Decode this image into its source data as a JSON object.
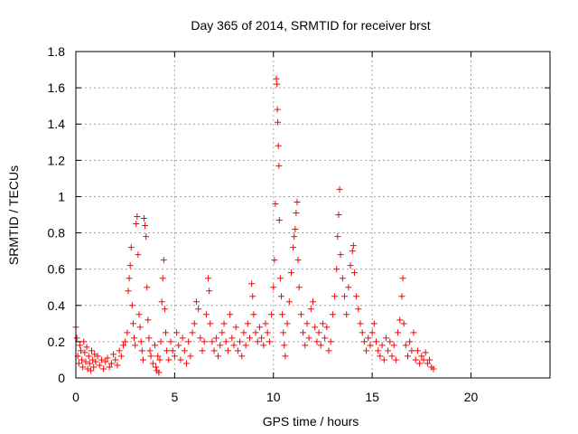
{
  "chart_data": {
    "type": "scatter",
    "title": "Day 365 of 2014, SRMTID for receiver brst",
    "xlabel": "GPS time / hours",
    "ylabel": "SRMTID / TECUs",
    "xlim": [
      0,
      24
    ],
    "ylim": [
      0,
      1.8
    ],
    "xticks": [
      0,
      5,
      10,
      15,
      20
    ],
    "yticks": [
      0,
      0.2,
      0.4,
      0.6,
      0.8,
      1,
      1.2,
      1.4,
      1.6,
      1.8
    ],
    "xtick_labels": [
      "0",
      "5",
      "10",
      "15",
      "20"
    ],
    "ytick_labels": [
      "0",
      "0.2",
      "0.4",
      "0.6",
      "0.8",
      "1",
      "1.2",
      "1.4",
      "1.6",
      "1.8"
    ],
    "grid": true,
    "marker": "+",
    "color": "#ff0000",
    "series": [
      {
        "name": "SRMTID",
        "points": [
          [
            0.0,
            0.28
          ],
          [
            0.05,
            0.22
          ],
          [
            0.1,
            0.12
          ],
          [
            0.15,
            0.08
          ],
          [
            0.2,
            0.18
          ],
          [
            0.25,
            0.15
          ],
          [
            0.3,
            0.1
          ],
          [
            0.35,
            0.06
          ],
          [
            0.4,
            0.2
          ],
          [
            0.45,
            0.14
          ],
          [
            0.5,
            0.09
          ],
          [
            0.55,
            0.17
          ],
          [
            0.6,
            0.05
          ],
          [
            0.65,
            0.12
          ],
          [
            0.7,
            0.08
          ],
          [
            0.75,
            0.04
          ],
          [
            0.8,
            0.15
          ],
          [
            0.85,
            0.1
          ],
          [
            0.9,
            0.06
          ],
          [
            0.95,
            0.13
          ],
          [
            1.0,
            0.09
          ],
          [
            1.1,
            0.12
          ],
          [
            1.2,
            0.07
          ],
          [
            1.3,
            0.1
          ],
          [
            1.4,
            0.05
          ],
          [
            1.5,
            0.09
          ],
          [
            1.6,
            0.11
          ],
          [
            1.7,
            0.06
          ],
          [
            1.8,
            0.08
          ],
          [
            1.9,
            0.13
          ],
          [
            2.0,
            0.1
          ],
          [
            2.1,
            0.07
          ],
          [
            2.2,
            0.15
          ],
          [
            2.3,
            0.12
          ],
          [
            2.4,
            0.18
          ],
          [
            2.5,
            0.2
          ],
          [
            2.6,
            0.25
          ],
          [
            2.65,
            0.48
          ],
          [
            2.7,
            0.55
          ],
          [
            2.75,
            0.62
          ],
          [
            2.8,
            0.72
          ],
          [
            2.85,
            0.4
          ],
          [
            2.9,
            0.3
          ],
          [
            2.95,
            0.22
          ],
          [
            3.0,
            0.18
          ],
          [
            3.05,
            0.85
          ],
          [
            3.1,
            0.89
          ],
          [
            3.15,
            0.68
          ],
          [
            3.2,
            0.35
          ],
          [
            3.25,
            0.28
          ],
          [
            3.3,
            0.2
          ],
          [
            3.35,
            0.15
          ],
          [
            3.4,
            0.1
          ],
          [
            3.45,
            0.88
          ],
          [
            3.5,
            0.84
          ],
          [
            3.55,
            0.78
          ],
          [
            3.6,
            0.5
          ],
          [
            3.65,
            0.32
          ],
          [
            3.7,
            0.22
          ],
          [
            3.75,
            0.15
          ],
          [
            3.8,
            0.12
          ],
          [
            3.9,
            0.08
          ],
          [
            4.0,
            0.18
          ],
          [
            4.05,
            0.06
          ],
          [
            4.1,
            0.04
          ],
          [
            4.15,
            0.12
          ],
          [
            4.2,
            0.03
          ],
          [
            4.25,
            0.1
          ],
          [
            4.3,
            0.2
          ],
          [
            4.35,
            0.42
          ],
          [
            4.4,
            0.55
          ],
          [
            4.45,
            0.65
          ],
          [
            4.5,
            0.38
          ],
          [
            4.55,
            0.25
          ],
          [
            4.6,
            0.15
          ],
          [
            4.7,
            0.1
          ],
          [
            4.8,
            0.2
          ],
          [
            4.9,
            0.15
          ],
          [
            5.0,
            0.12
          ],
          [
            5.1,
            0.25
          ],
          [
            5.2,
            0.18
          ],
          [
            5.3,
            0.1
          ],
          [
            5.4,
            0.22
          ],
          [
            5.5,
            0.15
          ],
          [
            5.6,
            0.08
          ],
          [
            5.7,
            0.2
          ],
          [
            5.8,
            0.12
          ],
          [
            5.9,
            0.25
          ],
          [
            6.0,
            0.3
          ],
          [
            6.1,
            0.42
          ],
          [
            6.2,
            0.38
          ],
          [
            6.3,
            0.22
          ],
          [
            6.4,
            0.15
          ],
          [
            6.5,
            0.2
          ],
          [
            6.6,
            0.35
          ],
          [
            6.7,
            0.55
          ],
          [
            6.75,
            0.48
          ],
          [
            6.8,
            0.3
          ],
          [
            6.9,
            0.2
          ],
          [
            7.0,
            0.15
          ],
          [
            7.1,
            0.22
          ],
          [
            7.2,
            0.12
          ],
          [
            7.3,
            0.18
          ],
          [
            7.4,
            0.25
          ],
          [
            7.5,
            0.3
          ],
          [
            7.6,
            0.2
          ],
          [
            7.7,
            0.15
          ],
          [
            7.8,
            0.35
          ],
          [
            7.9,
            0.22
          ],
          [
            8.0,
            0.18
          ],
          [
            8.1,
            0.28
          ],
          [
            8.2,
            0.15
          ],
          [
            8.3,
            0.2
          ],
          [
            8.4,
            0.12
          ],
          [
            8.5,
            0.25
          ],
          [
            8.6,
            0.18
          ],
          [
            8.7,
            0.3
          ],
          [
            8.8,
            0.22
          ],
          [
            8.9,
            0.52
          ],
          [
            8.95,
            0.45
          ],
          [
            9.0,
            0.35
          ],
          [
            9.1,
            0.25
          ],
          [
            9.2,
            0.2
          ],
          [
            9.3,
            0.28
          ],
          [
            9.4,
            0.22
          ],
          [
            9.5,
            0.18
          ],
          [
            9.6,
            0.3
          ],
          [
            9.7,
            0.25
          ],
          [
            9.8,
            0.2
          ],
          [
            9.9,
            0.35
          ],
          [
            10.0,
            0.5
          ],
          [
            10.05,
            0.65
          ],
          [
            10.1,
            0.96
          ],
          [
            10.15,
            1.65
          ],
          [
            10.18,
            1.62
          ],
          [
            10.2,
            1.48
          ],
          [
            10.22,
            1.41
          ],
          [
            10.25,
            1.28
          ],
          [
            10.28,
            1.17
          ],
          [
            10.3,
            0.87
          ],
          [
            10.35,
            0.55
          ],
          [
            10.4,
            0.45
          ],
          [
            10.45,
            0.35
          ],
          [
            10.5,
            0.25
          ],
          [
            10.55,
            0.18
          ],
          [
            10.6,
            0.12
          ],
          [
            10.7,
            0.3
          ],
          [
            10.8,
            0.42
          ],
          [
            10.9,
            0.58
          ],
          [
            11.0,
            0.72
          ],
          [
            11.05,
            0.78
          ],
          [
            11.1,
            0.82
          ],
          [
            11.15,
            0.91
          ],
          [
            11.2,
            0.97
          ],
          [
            11.25,
            0.65
          ],
          [
            11.3,
            0.5
          ],
          [
            11.4,
            0.35
          ],
          [
            11.5,
            0.25
          ],
          [
            11.6,
            0.18
          ],
          [
            11.7,
            0.3
          ],
          [
            11.8,
            0.22
          ],
          [
            11.9,
            0.38
          ],
          [
            12.0,
            0.42
          ],
          [
            12.1,
            0.28
          ],
          [
            12.2,
            0.2
          ],
          [
            12.3,
            0.25
          ],
          [
            12.4,
            0.18
          ],
          [
            12.5,
            0.3
          ],
          [
            12.6,
            0.22
          ],
          [
            12.7,
            0.28
          ],
          [
            12.8,
            0.15
          ],
          [
            12.9,
            0.2
          ],
          [
            13.0,
            0.35
          ],
          [
            13.1,
            0.45
          ],
          [
            13.2,
            0.6
          ],
          [
            13.25,
            0.78
          ],
          [
            13.3,
            0.9
          ],
          [
            13.35,
            1.04
          ],
          [
            13.4,
            0.68
          ],
          [
            13.5,
            0.55
          ],
          [
            13.6,
            0.45
          ],
          [
            13.7,
            0.35
          ],
          [
            13.8,
            0.5
          ],
          [
            13.9,
            0.62
          ],
          [
            14.0,
            0.7
          ],
          [
            14.05,
            0.73
          ],
          [
            14.1,
            0.58
          ],
          [
            14.2,
            0.45
          ],
          [
            14.3,
            0.38
          ],
          [
            14.4,
            0.3
          ],
          [
            14.5,
            0.25
          ],
          [
            14.6,
            0.2
          ],
          [
            14.7,
            0.15
          ],
          [
            14.8,
            0.22
          ],
          [
            14.9,
            0.18
          ],
          [
            15.0,
            0.25
          ],
          [
            15.1,
            0.3
          ],
          [
            15.2,
            0.2
          ],
          [
            15.3,
            0.15
          ],
          [
            15.4,
            0.12
          ],
          [
            15.5,
            0.18
          ],
          [
            15.6,
            0.1
          ],
          [
            15.7,
            0.22
          ],
          [
            15.8,
            0.15
          ],
          [
            15.9,
            0.2
          ],
          [
            16.0,
            0.12
          ],
          [
            16.1,
            0.18
          ],
          [
            16.2,
            0.1
          ],
          [
            16.3,
            0.25
          ],
          [
            16.4,
            0.32
          ],
          [
            16.5,
            0.45
          ],
          [
            16.55,
            0.55
          ],
          [
            16.6,
            0.3
          ],
          [
            16.7,
            0.18
          ],
          [
            16.8,
            0.12
          ],
          [
            16.9,
            0.2
          ],
          [
            17.0,
            0.15
          ],
          [
            17.1,
            0.25
          ],
          [
            17.2,
            0.1
          ],
          [
            17.3,
            0.15
          ],
          [
            17.4,
            0.08
          ],
          [
            17.5,
            0.12
          ],
          [
            17.6,
            0.1
          ],
          [
            17.7,
            0.14
          ],
          [
            17.8,
            0.08
          ],
          [
            17.9,
            0.1
          ],
          [
            18.0,
            0.06
          ],
          [
            18.1,
            0.05
          ]
        ]
      }
    ]
  }
}
